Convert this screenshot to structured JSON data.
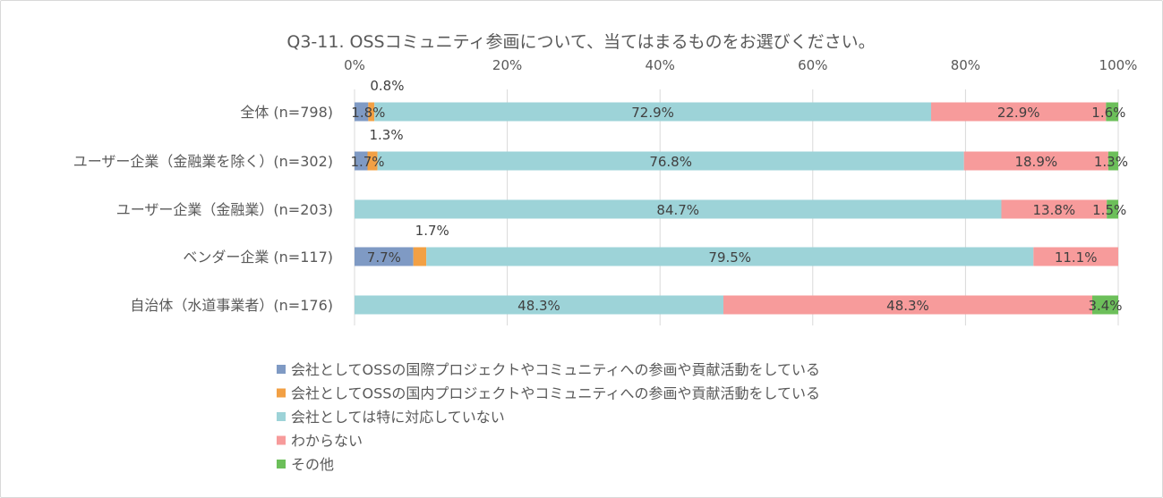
{
  "chart_data": {
    "type": "bar",
    "orientation": "horizontal",
    "stacked": "100%",
    "title": "Q3-11. OSSコミュニティ参画について、当てはまるものをお選びください。",
    "x_ticks": [
      "0%",
      "20%",
      "40%",
      "60%",
      "80%",
      "100%"
    ],
    "xlim": [
      0,
      100
    ],
    "grid": "vertical",
    "legend_position": "bottom",
    "categories": [
      "全体 (n=798)",
      "ユーザー企業（金融業を除く）(n=302)",
      "ユーザー企業（金融業）(n=203)",
      "ベンダー企業 (n=117)",
      "自治体（水道事業者）(n=176)"
    ],
    "series": [
      {
        "name": "会社としてOSSの国際プロジェクトやコミュニティへの参画や貢献活動をしている",
        "color": "#7f9ac4",
        "values": [
          1.8,
          1.7,
          0,
          7.7,
          0
        ],
        "labels": [
          "1.8%",
          "1.7%",
          "",
          "7.7%",
          ""
        ]
      },
      {
        "name": "会社としてOSSの国内プロジェクトやコミュニティへの参画や貢献活動をしている",
        "color": "#f2a044",
        "values": [
          0.8,
          1.3,
          0,
          1.7,
          0
        ],
        "labels": [
          "0.8%",
          "1.3%",
          "",
          "1.7%",
          ""
        ]
      },
      {
        "name": "会社としては特に対応していない",
        "color": "#9dd3d8",
        "values": [
          72.9,
          76.8,
          84.7,
          79.5,
          48.3
        ],
        "labels": [
          "72.9%",
          "76.8%",
          "84.7%",
          "79.5%",
          "48.3%"
        ]
      },
      {
        "name": "わからない",
        "color": "#f79b9b",
        "values": [
          22.9,
          18.9,
          13.8,
          11.1,
          48.3
        ],
        "labels": [
          "22.9%",
          "18.9%",
          "13.8%",
          "11.1%",
          "48.3%"
        ]
      },
      {
        "name": "その他",
        "color": "#6cbf5a",
        "values": [
          1.6,
          1.3,
          1.5,
          0,
          3.4
        ],
        "labels": [
          "1.6%",
          "1.3%",
          "1.5%",
          "",
          "3.4%"
        ]
      }
    ]
  }
}
